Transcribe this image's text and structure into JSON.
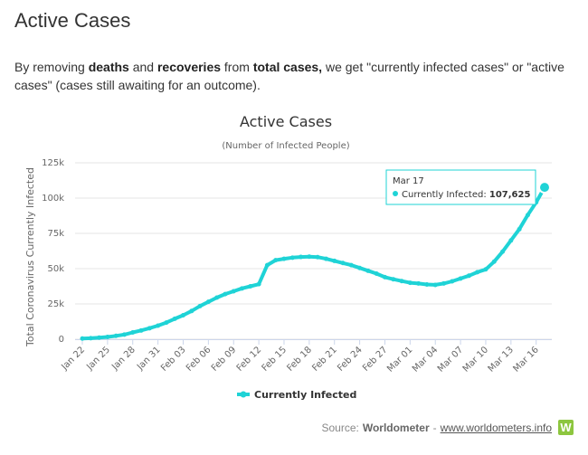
{
  "page": {
    "heading": "Active Cases",
    "intro": {
      "p1": "By removing ",
      "b1": "deaths",
      "p2": " and ",
      "b2": "recoveries",
      "p3": " from ",
      "b3": "total cases,",
      "p4": " we get \"currently infected cases\" or \"active cases\" (cases still awaiting for an outcome)."
    },
    "source": {
      "prefix": "Source:",
      "name": "Worldometer",
      "separator": "-",
      "link": "www.worldometers.info",
      "logo": "W"
    }
  },
  "tooltip": {
    "date": "Mar 17",
    "series": "Currently Infected:",
    "value": "107,625"
  },
  "colors": {
    "series": "#1fd3d6",
    "text": "#333333"
  },
  "chart_data": {
    "type": "line",
    "title": "Active Cases",
    "subtitle": "(Number of Infected People)",
    "ylabel": "Total Coronavirus Currently Infected",
    "xlabel": "",
    "ylim": [
      0,
      125000
    ],
    "yticks": [
      0,
      25000,
      50000,
      75000,
      100000,
      125000
    ],
    "ytick_labels": [
      "0",
      "25k",
      "50k",
      "75k",
      "100k",
      "125k"
    ],
    "xtick_labels": [
      "Jan 22",
      "Jan 25",
      "Jan 28",
      "Jan 31",
      "Feb 03",
      "Feb 06",
      "Feb 09",
      "Feb 12",
      "Feb 15",
      "Feb 18",
      "Feb 21",
      "Feb 24",
      "Feb 27",
      "Mar 01",
      "Mar 04",
      "Mar 07",
      "Mar 10",
      "Mar 13",
      "Mar 16"
    ],
    "grid": true,
    "legend": "bottom-center",
    "x": [
      "Jan 22",
      "Jan 23",
      "Jan 24",
      "Jan 25",
      "Jan 26",
      "Jan 27",
      "Jan 28",
      "Jan 29",
      "Jan 30",
      "Jan 31",
      "Feb 01",
      "Feb 02",
      "Feb 03",
      "Feb 04",
      "Feb 05",
      "Feb 06",
      "Feb 07",
      "Feb 08",
      "Feb 09",
      "Feb 10",
      "Feb 11",
      "Feb 12",
      "Feb 13",
      "Feb 14",
      "Feb 15",
      "Feb 16",
      "Feb 17",
      "Feb 18",
      "Feb 19",
      "Feb 20",
      "Feb 21",
      "Feb 22",
      "Feb 23",
      "Feb 24",
      "Feb 25",
      "Feb 26",
      "Feb 27",
      "Feb 28",
      "Feb 29",
      "Mar 01",
      "Mar 02",
      "Mar 03",
      "Mar 04",
      "Mar 05",
      "Mar 06",
      "Mar 07",
      "Mar 08",
      "Mar 09",
      "Mar 10",
      "Mar 11",
      "Mar 12",
      "Mar 13",
      "Mar 14",
      "Mar 15",
      "Mar 16",
      "Mar 17"
    ],
    "series": [
      {
        "name": "Currently Infected",
        "values": [
          500,
          700,
          1100,
          1600,
          2400,
          3300,
          4800,
          6200,
          7800,
          9600,
          11800,
          14500,
          17000,
          20000,
          23500,
          26500,
          29500,
          32000,
          34000,
          36000,
          37500,
          39000,
          52500,
          56000,
          57000,
          57800,
          58300,
          58500,
          58200,
          57000,
          55500,
          54000,
          52500,
          50500,
          48500,
          46500,
          44000,
          42500,
          41200,
          40000,
          39500,
          38800,
          38500,
          39500,
          41000,
          43000,
          45000,
          47500,
          49500,
          55000,
          62000,
          70000,
          78000,
          88000,
          97000,
          107625
        ]
      }
    ]
  }
}
